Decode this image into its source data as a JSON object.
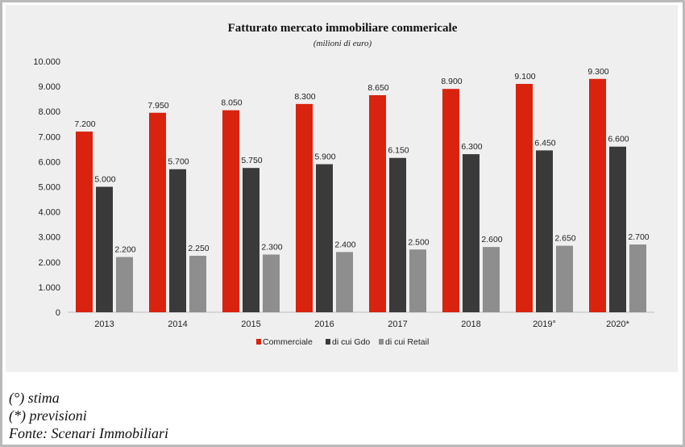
{
  "chart_data": {
    "type": "bar",
    "title": "Fatturato mercato immobiliare commericale",
    "subtitle": "(milioni di euro)",
    "categories": [
      "2013",
      "2014",
      "2015",
      "2016",
      "2017",
      "2018",
      "2019°",
      "2020*"
    ],
    "series": [
      {
        "name": "Commerciale",
        "color": "#d9230f",
        "values": [
          7200,
          7950,
          8050,
          8300,
          8650,
          8900,
          9100,
          9300
        ],
        "labels": [
          "7.200",
          "7.950",
          "8.050",
          "8.300",
          "8.650",
          "8.900",
          "9.100",
          "9.300"
        ]
      },
      {
        "name": "di cui Gdo",
        "color": "#3a3a3a",
        "values": [
          5000,
          5700,
          5750,
          5900,
          6150,
          6300,
          6450,
          6600
        ],
        "labels": [
          "5.000",
          "5.700",
          "5.750",
          "5.900",
          "6.150",
          "6.300",
          "6.450",
          "6.600"
        ]
      },
      {
        "name": "di cui Retail",
        "color": "#8e8e8e",
        "values": [
          2200,
          2250,
          2300,
          2400,
          2500,
          2600,
          2650,
          2700
        ],
        "labels": [
          "2.200",
          "2.250",
          "2.300",
          "2.400",
          "2.500",
          "2.600",
          "2.650",
          "2.700"
        ]
      }
    ],
    "ylim": [
      0,
      10000
    ],
    "yticks": [
      0,
      1000,
      2000,
      3000,
      4000,
      5000,
      6000,
      7000,
      8000,
      9000,
      10000
    ],
    "ytick_labels": [
      "0",
      "1.000",
      "2.000",
      "3.000",
      "4.000",
      "5.000",
      "6.000",
      "7.000",
      "8.000",
      "9.000",
      "10.000"
    ],
    "grid": false,
    "legend": "bottom"
  },
  "notes": [
    "(°) stima",
    "(*) previsioni",
    "Fonte: Scenari Immobiliari"
  ]
}
